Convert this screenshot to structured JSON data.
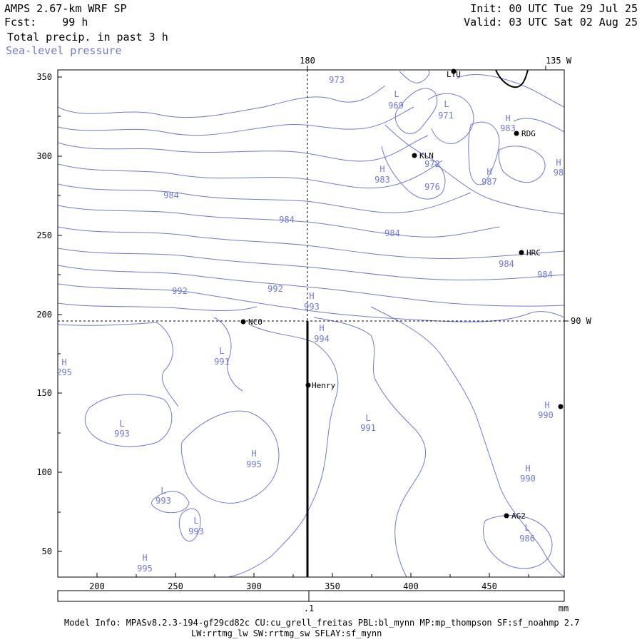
{
  "header": {
    "model": "AMPS 2.67-km WRF SP",
    "fcst": "Fcst:    99 h",
    "field1": "Total precip. in past 3 h",
    "field2": "Sea-level pressure",
    "init": "Init: 00 UTC Tue 29 Jul 25",
    "valid": "Valid: 03 UTC Sat 02 Aug 25"
  },
  "axes": {
    "x_ticks": [
      "200",
      "250",
      "300",
      "350",
      "400",
      "450"
    ],
    "y_ticks": [
      "350",
      "300",
      "250",
      "200",
      "150",
      "100",
      "50"
    ],
    "lon_top_180": "180",
    "lon_top_135w": "135 W",
    "lon_right_90w": "90 W"
  },
  "colors": {
    "contour": "#6f78e0",
    "axis": "#000000"
  },
  "contour_labels": [
    {
      "text": "973"
    },
    {
      "text": "969"
    },
    {
      "text": "971"
    },
    {
      "text": "983"
    },
    {
      "text": "972"
    },
    {
      "text": "983"
    },
    {
      "text": "976"
    },
    {
      "text": "987"
    },
    {
      "text": "98"
    },
    {
      "text": "984"
    },
    {
      "text": "984"
    },
    {
      "text": "984"
    },
    {
      "text": "984"
    },
    {
      "text": "984"
    },
    {
      "text": "992"
    },
    {
      "text": "992"
    },
    {
      "text": "993"
    },
    {
      "text": "994"
    },
    {
      "text": "991"
    },
    {
      "text": "295"
    },
    {
      "text": "993"
    },
    {
      "text": "995"
    },
    {
      "text": "991"
    },
    {
      "text": "990"
    },
    {
      "text": "990"
    },
    {
      "text": "993"
    },
    {
      "text": "993"
    },
    {
      "text": "986"
    },
    {
      "text": "995"
    }
  ],
  "pressure_centers": [
    {
      "text": "L"
    },
    {
      "text": "L"
    },
    {
      "text": "H"
    },
    {
      "text": "H"
    },
    {
      "text": "H"
    },
    {
      "text": "H"
    },
    {
      "text": "H"
    },
    {
      "text": "H"
    },
    {
      "text": "L"
    },
    {
      "text": "H"
    },
    {
      "text": "L"
    },
    {
      "text": "H"
    },
    {
      "text": "L"
    },
    {
      "text": "H"
    },
    {
      "text": "H"
    },
    {
      "text": "L"
    },
    {
      "text": "L"
    },
    {
      "text": "L"
    },
    {
      "text": "H"
    }
  ],
  "stations": [
    {
      "name": "LYU"
    },
    {
      "name": "RDG"
    },
    {
      "name": "KLN"
    },
    {
      "name": "HRC"
    },
    {
      "name": "NCO"
    },
    {
      "name": "Henry"
    },
    {
      "name": "AG2"
    },
    {
      "name": ""
    }
  ],
  "colorbar": {
    "tick": ".1",
    "unit": "mm"
  },
  "footer": {
    "line1": "Model Info: MPASv8.2.3-194-gf29cd82c CU:cu_grell_freitas PBL:bl_mynn MP:mp_thompson SF:sf_noahmp 2.7",
    "line2": "LW:rrtmg_lw SW:rrtmg_sw SFLAY:sf_mynn"
  }
}
